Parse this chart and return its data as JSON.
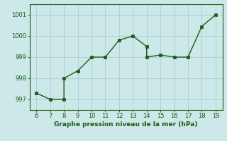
{
  "x": [
    6,
    7,
    8,
    8,
    9,
    10,
    11,
    12,
    13,
    14,
    14,
    15,
    16,
    17,
    18,
    19
  ],
  "y": [
    997.3,
    997.0,
    997.0,
    998.0,
    998.35,
    999.0,
    999.0,
    999.8,
    1000.0,
    999.5,
    999.0,
    999.1,
    999.0,
    999.0,
    1000.45,
    1001.0
  ],
  "line_color": "#1a5c1a",
  "marker_color": "#1a5c1a",
  "background_color": "#cce8e8",
  "grid_color": "#aacece",
  "xlabel": "Graphe pression niveau de la mer (hPa)",
  "xticks": [
    6,
    7,
    8,
    9,
    10,
    11,
    12,
    13,
    14,
    15,
    16,
    17,
    18,
    19
  ],
  "yticks": [
    997,
    998,
    999,
    1000,
    1001
  ],
  "xlim": [
    5.5,
    19.5
  ],
  "ylim": [
    996.5,
    1001.5
  ],
  "xlabel_fontsize": 6.5,
  "tick_fontsize": 6,
  "linewidth": 1.0,
  "markersize": 2.5
}
